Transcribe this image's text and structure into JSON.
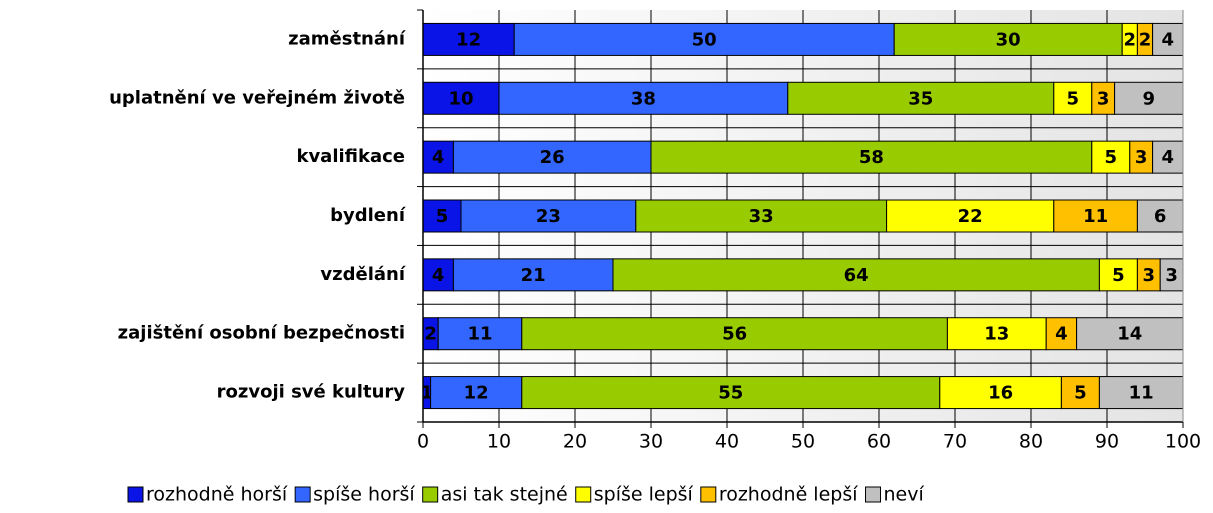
{
  "chart_data": {
    "type": "stacked-bar-horizontal",
    "categories": [
      "zaměstnání",
      "uplatnění ve veřejném životě",
      "kvalifikace",
      "bydlení",
      "vzdělání",
      "zajištění osobní bezpečnosti",
      "rozvoji své kultury"
    ],
    "series": [
      {
        "name": "rozhodně horší",
        "color": "#0a14e6",
        "values": [
          12,
          10,
          4,
          5,
          4,
          2,
          1
        ]
      },
      {
        "name": "spíše horší",
        "color": "#3366ff",
        "values": [
          50,
          38,
          26,
          23,
          21,
          11,
          12
        ]
      },
      {
        "name": "asi tak stejné",
        "color": "#99cc00",
        "values": [
          30,
          35,
          58,
          33,
          64,
          56,
          55
        ]
      },
      {
        "name": "spíše lepší",
        "color": "#ffff00",
        "values": [
          2,
          5,
          5,
          22,
          5,
          13,
          16
        ]
      },
      {
        "name": "rozhodně lepší",
        "color": "#ffc000",
        "values": [
          2,
          3,
          3,
          11,
          3,
          4,
          5
        ]
      },
      {
        "name": "neví",
        "color": "#c0c0c0",
        "values": [
          4,
          9,
          4,
          6,
          3,
          14,
          11
        ]
      }
    ],
    "xlim": [
      0,
      100
    ],
    "xticks": [
      0,
      10,
      20,
      30,
      40,
      50,
      60,
      70,
      80,
      90,
      100
    ],
    "grid": true,
    "legend": "bottom"
  }
}
